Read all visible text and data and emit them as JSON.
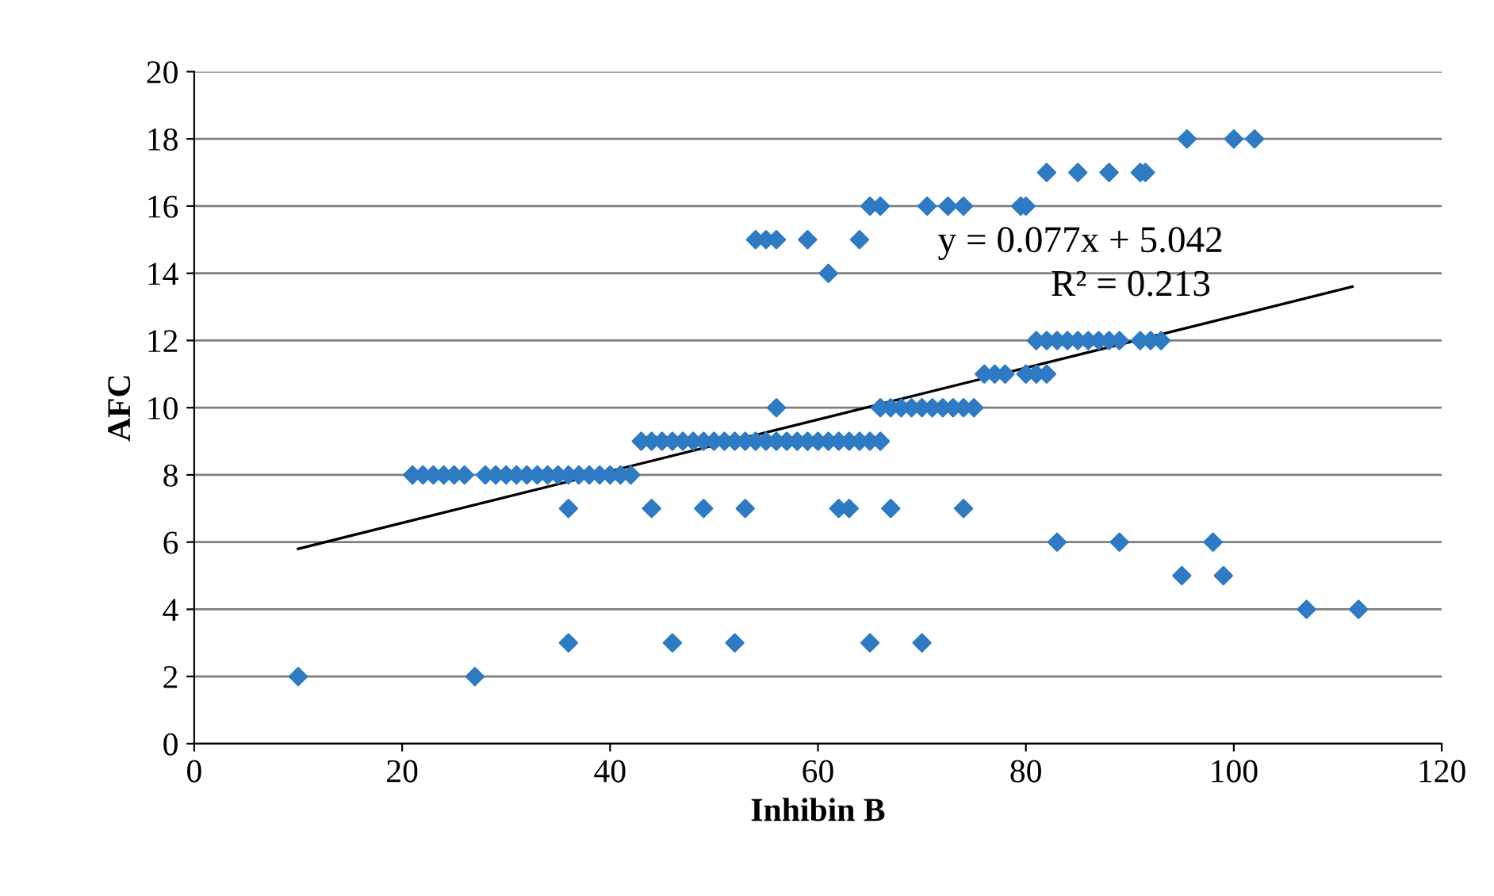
{
  "chart_data": {
    "type": "scatter",
    "xlabel": "Inhibin B",
    "ylabel": "AFC",
    "xlim": [
      0,
      120
    ],
    "xticks": [
      0,
      20,
      40,
      60,
      80,
      100,
      120
    ],
    "ylim": [
      0,
      20
    ],
    "yticks": [
      0,
      2,
      4,
      6,
      8,
      10,
      12,
      14,
      16,
      18,
      20
    ],
    "grid": "y",
    "legend": false,
    "annotations": [
      "y = 0.077x + 5.042",
      "R² = 0.213"
    ],
    "series": [
      {
        "color": "#2e7bc4",
        "marker": "diamond",
        "x": [
          10,
          27,
          36,
          46,
          52,
          65,
          70,
          83,
          89,
          98,
          95,
          99,
          107,
          112,
          36,
          44,
          49,
          53,
          62,
          63,
          67,
          74,
          21,
          22,
          23,
          24,
          25,
          26,
          28,
          29,
          30,
          31,
          32,
          33,
          34,
          35,
          36,
          37,
          38,
          39,
          40,
          41,
          42,
          43,
          44,
          45,
          46,
          47,
          48,
          49,
          50,
          51,
          52,
          53,
          54,
          55,
          56,
          57,
          58,
          59,
          60,
          61,
          62,
          63,
          64,
          65,
          66,
          56,
          66,
          67,
          68,
          69,
          70,
          71,
          72,
          73,
          74,
          75,
          76,
          77,
          78,
          80,
          81,
          82,
          81,
          82,
          83,
          84,
          85,
          86,
          87,
          88,
          89,
          91,
          92,
          93,
          61,
          54,
          55,
          56,
          59,
          64,
          65,
          66,
          70.5,
          72.5,
          74,
          79.5,
          80,
          82,
          85,
          88,
          91,
          91.5,
          95.5,
          100,
          102
        ],
        "values": [
          2,
          2,
          3,
          3,
          3,
          3,
          3,
          6,
          6,
          6,
          5,
          5,
          4,
          4,
          7,
          7,
          7,
          7,
          7,
          7,
          7,
          7,
          8,
          8,
          8,
          8,
          8,
          8,
          8,
          8,
          8,
          8,
          8,
          8,
          8,
          8,
          8,
          8,
          8,
          8,
          8,
          8,
          8,
          9,
          9,
          9,
          9,
          9,
          9,
          9,
          9,
          9,
          9,
          9,
          9,
          9,
          9,
          9,
          9,
          9,
          9,
          9,
          9,
          9,
          9,
          9,
          9,
          10,
          10,
          10,
          10,
          10,
          10,
          10,
          10,
          10,
          10,
          10,
          11,
          11,
          11,
          11,
          11,
          11,
          12,
          12,
          12,
          12,
          12,
          12,
          12,
          12,
          12,
          12,
          12,
          12,
          14,
          15,
          15,
          15,
          15,
          15,
          16,
          16,
          16,
          16,
          16,
          16,
          16,
          17,
          17,
          17,
          17,
          17,
          18,
          18,
          18
        ]
      },
      {
        "type": "line",
        "color": "#000000",
        "marker": "none",
        "x": [
          10,
          111.4
        ],
        "values": [
          5.8,
          13.6
        ]
      }
    ]
  }
}
